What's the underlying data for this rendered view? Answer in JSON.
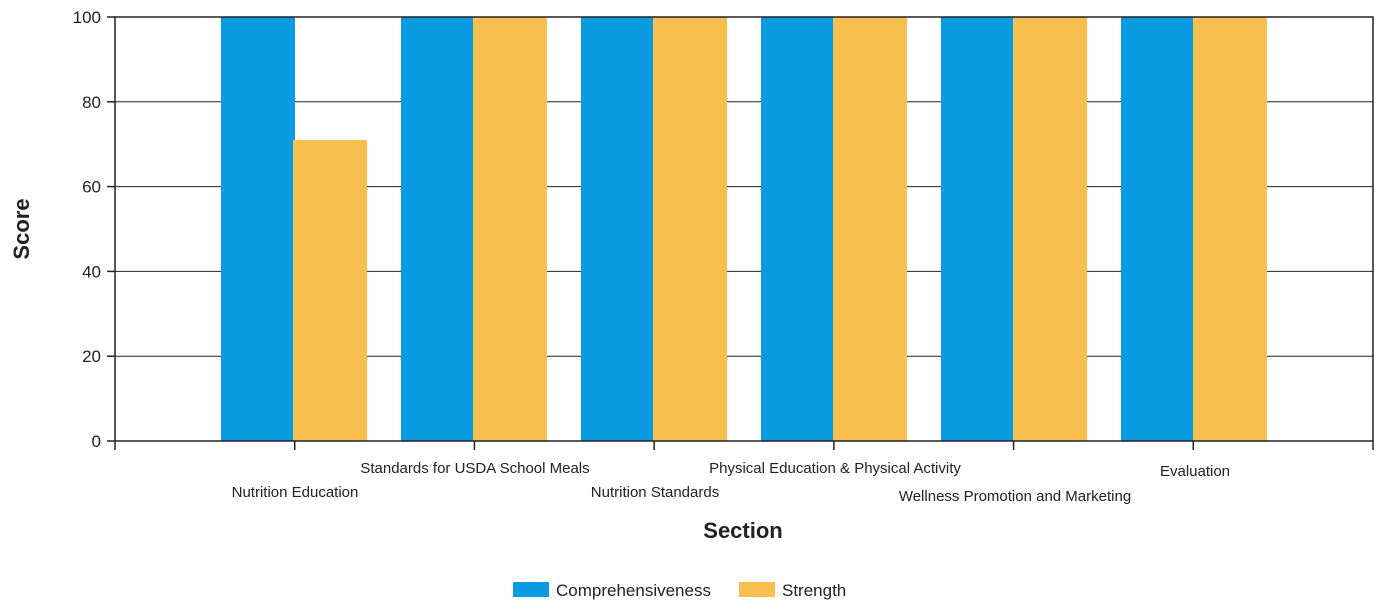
{
  "chart_data": {
    "type": "bar",
    "xlabel": "Section",
    "ylabel": "Score",
    "ylim": [
      0,
      100
    ],
    "yticks": [
      0,
      20,
      40,
      60,
      80,
      100
    ],
    "grid": true,
    "legend_position": "bottom-center",
    "categories": [
      "Nutrition Education",
      "Standards for USDA School Meals",
      "Nutrition Standards",
      "Physical Education & Physical Activity",
      "Wellness Promotion and Marketing",
      "Evaluation"
    ],
    "series": [
      {
        "name": "Comprehensiveness",
        "color": "#0a9be0",
        "values": [
          100,
          100,
          100,
          100,
          100,
          100
        ]
      },
      {
        "name": "Strength",
        "color": "#f7c04e",
        "values": [
          71,
          100,
          100,
          100,
          100,
          100
        ]
      }
    ]
  }
}
